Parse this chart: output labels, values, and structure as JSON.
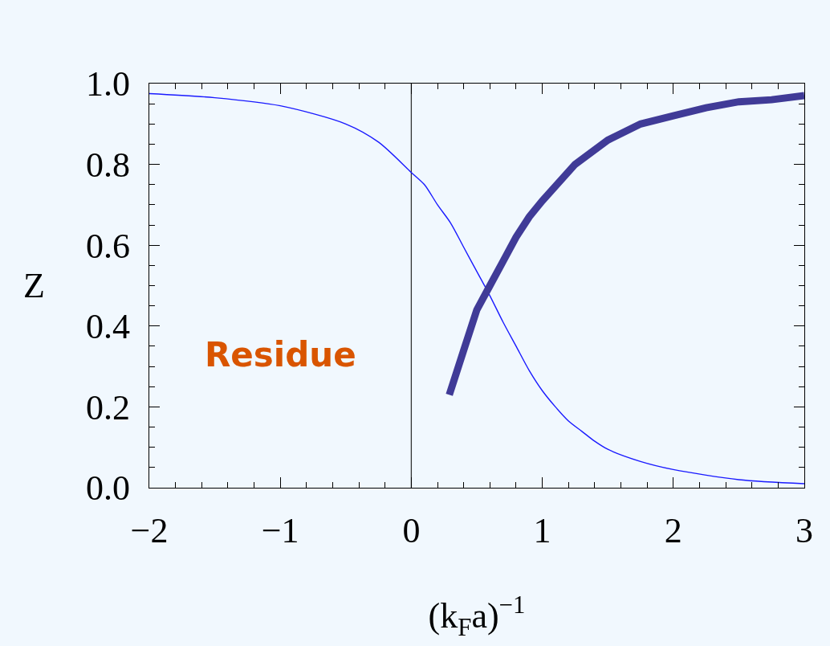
{
  "chart_data": {
    "type": "line",
    "xlabel": "(k$_{F}$a)$^{−1}$",
    "ylabel": "Z",
    "annotations": [
      "Residue"
    ],
    "xlim": [
      -2,
      3
    ],
    "ylim": [
      0,
      1
    ],
    "xticks": [
      {
        "value": -2,
        "label": "−2"
      },
      {
        "value": -1.8,
        "label": null
      },
      {
        "value": -1.6,
        "label": null
      },
      {
        "value": -1.4,
        "label": null
      },
      {
        "value": -1.2,
        "label": null
      },
      {
        "value": -1,
        "label": "−1"
      },
      {
        "value": -0.8,
        "label": null
      },
      {
        "value": -0.6,
        "label": null
      },
      {
        "value": -0.4,
        "label": null
      },
      {
        "value": -0.2,
        "label": null
      },
      0,
      {
        "value": 0.2,
        "label": null
      },
      {
        "value": 0.4,
        "label": null
      },
      {
        "value": 0.6,
        "label": null
      },
      {
        "value": 0.8,
        "label": null
      },
      1,
      {
        "value": 1.2,
        "label": null
      },
      {
        "value": 1.4,
        "label": null
      },
      {
        "value": 1.6,
        "label": null
      },
      {
        "value": 1.8,
        "label": null
      },
      2,
      {
        "value": 2.2,
        "label": null
      },
      {
        "value": 2.4,
        "label": null
      },
      {
        "value": 2.6,
        "label": null
      },
      {
        "value": 2.8,
        "label": null
      },
      3
    ],
    "yticks": [
      {
        "value": 0,
        "label": "0.0"
      },
      {
        "value": 0.05,
        "label": null
      },
      {
        "value": 0.1,
        "label": null
      },
      {
        "value": 0.15,
        "label": null
      },
      {
        "value": 0.2,
        "label": "0.2"
      },
      {
        "value": 0.25,
        "label": null
      },
      {
        "value": 0.3,
        "label": null
      },
      {
        "value": 0.35,
        "label": null
      },
      {
        "value": 0.4,
        "label": "0.4"
      },
      {
        "value": 0.45,
        "label": null
      },
      {
        "value": 0.5,
        "label": null
      },
      {
        "value": 0.55,
        "label": null
      },
      {
        "value": 0.6,
        "label": "0.6"
      },
      {
        "value": 0.65,
        "label": null
      },
      {
        "value": 0.7,
        "label": null
      },
      {
        "value": 0.75,
        "label": null
      },
      {
        "value": 0.8,
        "label": "0.8"
      },
      {
        "value": 0.85,
        "label": null
      },
      {
        "value": 0.9,
        "label": null
      },
      {
        "value": 0.95,
        "label": null
      },
      {
        "value": 1,
        "label": "1.0"
      }
    ],
    "grid": false,
    "ref_lines": [
      {
        "axis": "x",
        "value": 0,
        "label": null,
        "color": "#333333"
      }
    ],
    "series": [
      {
        "color": "#1a1aff",
        "x": [
          -2,
          -1.5,
          -1,
          -0.5,
          -0.25,
          0,
          0.1,
          0.2,
          0.3,
          0.4,
          0.5,
          0.6,
          0.7,
          0.8,
          0.9,
          1,
          1.1,
          1.2,
          1.3,
          1.4,
          1.5,
          1.75,
          2,
          2.5,
          3
        ],
        "values": [
          0.975,
          0.965,
          0.945,
          0.9,
          0.855,
          0.78,
          0.75,
          0.7,
          0.655,
          0.595,
          0.535,
          0.475,
          0.41,
          0.35,
          0.29,
          0.24,
          0.2,
          0.165,
          0.14,
          0.115,
          0.095,
          0.065,
          0.045,
          0.02,
          0.01
        ]
      },
      {
        "color": "#403b97",
        "x": [
          0.29,
          0.4,
          0.5,
          0.6,
          0.7,
          0.8,
          0.9,
          1,
          1.25,
          1.5,
          1.75,
          2,
          2.25,
          2.5,
          2.75,
          3
        ],
        "values": [
          0.23,
          0.34,
          0.44,
          0.5,
          0.56,
          0.62,
          0.67,
          0.71,
          0.8,
          0.86,
          0.9,
          0.92,
          0.94,
          0.955,
          0.96,
          0.97
        ]
      }
    ]
  }
}
